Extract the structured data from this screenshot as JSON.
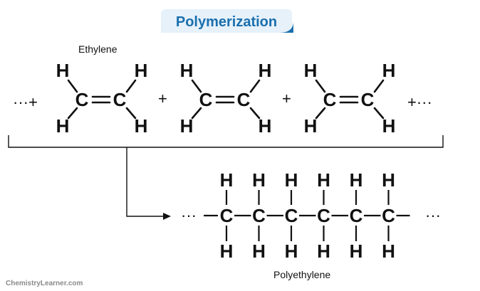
{
  "title": "Polymerization",
  "monomer_label": "Ethylene",
  "polymer_label": "Polyethylene",
  "brand": "ChemistryLearner.com",
  "colors": {
    "title": "#1a6fae",
    "title_bg": "#e6f1fa",
    "ink": "#111111"
  },
  "atoms": {
    "carbon": "C",
    "hydrogen": "H"
  },
  "operators": {
    "lead": "···+",
    "plus_1": "+",
    "plus_2": "+",
    "trail": "+···",
    "polymer_lead": "···",
    "polymer_trail": "···"
  },
  "monomer_count": 3,
  "polymer_unit_count": 6
}
